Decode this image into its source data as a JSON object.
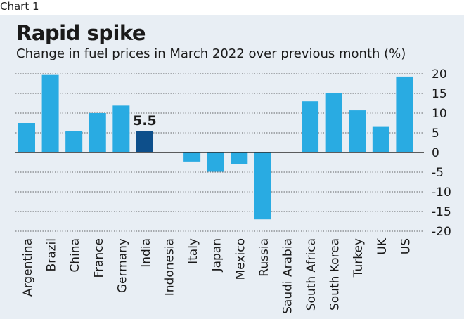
{
  "chart_label": "Chart 1",
  "chart_data": {
    "type": "bar",
    "title": "Rapid spike",
    "subtitle": "Change in fuel prices in March 2022 over previous month (%)",
    "categories": [
      "Argentina",
      "Brazil",
      "China",
      "France",
      "Germany",
      "India",
      "Indonesia",
      "Italy",
      "Japan",
      "Mexico",
      "Russia",
      "Saudi Arabia",
      "South Africa",
      "South Korea",
      "Turkey",
      "UK",
      "US"
    ],
    "values": [
      7.5,
      19.7,
      5.4,
      10.0,
      11.9,
      5.5,
      0,
      -2.3,
      -4.9,
      -2.9,
      -17.0,
      0,
      13.0,
      15.1,
      10.7,
      6.5,
      19.3
    ],
    "highlight_index": 5,
    "annotations": [
      {
        "category": "India",
        "text": "5.5"
      }
    ],
    "yticks": [
      "20",
      "15",
      "10",
      "5",
      "0",
      "-5",
      "-10",
      "-15",
      "-20"
    ],
    "ylim": [
      -20,
      20
    ],
    "xlabel": "",
    "ylabel": "",
    "grid": true,
    "colors": {
      "bar": "#29abe2",
      "highlight": "#0d4f8b",
      "grid": "#3a3a3a",
      "background": "#e8eef4"
    }
  }
}
